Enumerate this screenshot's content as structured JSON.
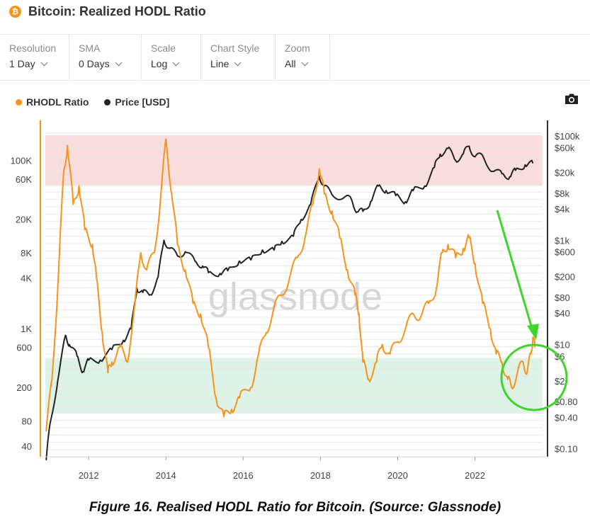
{
  "header": {
    "title": "Bitcoin: Realized HODL Ratio",
    "badge": "₿"
  },
  "toolbar": {
    "resolution": {
      "label": "Resolution",
      "value": "1 Day"
    },
    "sma": {
      "label": "SMA",
      "value": "0 Days"
    },
    "scale": {
      "label": "Scale",
      "value": "Log"
    },
    "chart_style": {
      "label": "Chart Style",
      "value": "Line"
    },
    "zoom": {
      "label": "Zoom",
      "value": "All"
    }
  },
  "legend": [
    {
      "name": "RHODL Ratio",
      "color": "#f7931a"
    },
    {
      "name": "Price [USD]",
      "color": "#222222"
    }
  ],
  "icons": {
    "camera": "camera-icon",
    "arrow": "green-arrow",
    "circle": "green-circle"
  },
  "watermark": "glassnode",
  "caption": "Figure 16. Realised HODL Ratio for Bitcoin. (Source: Glassnode)",
  "chart_data": {
    "type": "line",
    "scale": "log",
    "x_ticks": [
      "2012",
      "2014",
      "2016",
      "2018",
      "2020",
      "2022"
    ],
    "left_axis_ticks": [
      "100K",
      "60K",
      "20K",
      "8K",
      "4K",
      "1K",
      "600",
      "200",
      "80",
      "40"
    ],
    "right_axis_ticks": [
      "$100k",
      "$60k",
      "$20k",
      "$8k",
      "$4k",
      "$1k",
      "$600",
      "$200",
      "$80",
      "$40",
      "$10",
      "$6",
      "$2",
      "$0.80",
      "$0.40",
      "$0.10"
    ],
    "bands": [
      {
        "zone": "upper",
        "from": 50000,
        "to": 200000,
        "color": "#fbdcdc"
      },
      {
        "zone": "lower",
        "from": 100,
        "to": 450,
        "color": "#ddf3e6"
      }
    ],
    "series": [
      {
        "name": "RHODL Ratio",
        "color": "#f7931a",
        "axis": "left",
        "points": [
          [
            2010.9,
            60
          ],
          [
            2011.05,
            250
          ],
          [
            2011.2,
            3000
          ],
          [
            2011.35,
            70000
          ],
          [
            2011.45,
            150000
          ],
          [
            2011.6,
            30000
          ],
          [
            2011.75,
            50000
          ],
          [
            2011.9,
            15000
          ],
          [
            2012.1,
            10000
          ],
          [
            2012.2,
            4000
          ],
          [
            2012.35,
            900
          ],
          [
            2012.5,
            300
          ],
          [
            2012.6,
            400
          ],
          [
            2012.8,
            600
          ],
          [
            2013.0,
            400
          ],
          [
            2013.2,
            2000
          ],
          [
            2013.35,
            8000
          ],
          [
            2013.5,
            5000
          ],
          [
            2013.7,
            8000
          ],
          [
            2013.85,
            30000
          ],
          [
            2014.0,
            180000
          ],
          [
            2014.15,
            40000
          ],
          [
            2014.3,
            10000
          ],
          [
            2014.5,
            5000
          ],
          [
            2014.7,
            2000
          ],
          [
            2014.9,
            1500
          ],
          [
            2015.1,
            600
          ],
          [
            2015.3,
            150
          ],
          [
            2015.5,
            90
          ],
          [
            2015.7,
            110
          ],
          [
            2015.9,
            150
          ],
          [
            2016.2,
            200
          ],
          [
            2016.4,
            500
          ],
          [
            2016.6,
            900
          ],
          [
            2016.8,
            1800
          ],
          [
            2017.0,
            2500
          ],
          [
            2017.2,
            4000
          ],
          [
            2017.4,
            7000
          ],
          [
            2017.6,
            12000
          ],
          [
            2017.8,
            30000
          ],
          [
            2017.97,
            80000
          ],
          [
            2018.1,
            40000
          ],
          [
            2018.3,
            25000
          ],
          [
            2018.5,
            12000
          ],
          [
            2018.7,
            5000
          ],
          [
            2018.9,
            2500
          ],
          [
            2019.0,
            1500
          ],
          [
            2019.1,
            400
          ],
          [
            2019.25,
            250
          ],
          [
            2019.45,
            400
          ],
          [
            2019.6,
            650
          ],
          [
            2019.8,
            500
          ],
          [
            2020.0,
            700
          ],
          [
            2020.2,
            1000
          ],
          [
            2020.4,
            1500
          ],
          [
            2020.6,
            1400
          ],
          [
            2020.8,
            2000
          ],
          [
            2021.0,
            3000
          ],
          [
            2021.15,
            8000
          ],
          [
            2021.3,
            10000
          ],
          [
            2021.5,
            7000
          ],
          [
            2021.7,
            9000
          ],
          [
            2021.85,
            12000
          ],
          [
            2022.0,
            6000
          ],
          [
            2022.2,
            2000
          ],
          [
            2022.4,
            1000
          ],
          [
            2022.55,
            500
          ],
          [
            2022.7,
            400
          ],
          [
            2022.85,
            250
          ],
          [
            2022.95,
            200
          ],
          [
            2023.1,
            300
          ],
          [
            2023.25,
            400
          ],
          [
            2023.35,
            300
          ],
          [
            2023.45,
            500
          ],
          [
            2023.5,
            800
          ],
          [
            2023.55,
            600
          ]
        ]
      },
      {
        "name": "Price [USD]",
        "color": "#222222",
        "axis": "right",
        "points": [
          [
            2010.9,
            0.06
          ],
          [
            2011.0,
            0.3
          ],
          [
            2011.2,
            2
          ],
          [
            2011.4,
            15
          ],
          [
            2011.5,
            10
          ],
          [
            2011.7,
            6
          ],
          [
            2011.85,
            3
          ],
          [
            2012.0,
            5
          ],
          [
            2012.3,
            5
          ],
          [
            2012.6,
            8
          ],
          [
            2012.9,
            12
          ],
          [
            2013.1,
            20
          ],
          [
            2013.25,
            120
          ],
          [
            2013.4,
            100
          ],
          [
            2013.6,
            90
          ],
          [
            2013.8,
            200
          ],
          [
            2013.95,
            1000
          ],
          [
            2014.1,
            700
          ],
          [
            2014.3,
            500
          ],
          [
            2014.5,
            600
          ],
          [
            2014.75,
            400
          ],
          [
            2014.95,
            320
          ],
          [
            2015.1,
            240
          ],
          [
            2015.4,
            230
          ],
          [
            2015.6,
            260
          ],
          [
            2015.9,
            400
          ],
          [
            2016.2,
            420
          ],
          [
            2016.5,
            650
          ],
          [
            2016.8,
            650
          ],
          [
            2017.0,
            950
          ],
          [
            2017.3,
            1200
          ],
          [
            2017.5,
            2500
          ],
          [
            2017.75,
            5000
          ],
          [
            2017.97,
            17000
          ],
          [
            2018.1,
            11000
          ],
          [
            2018.3,
            7500
          ],
          [
            2018.6,
            6500
          ],
          [
            2018.8,
            6200
          ],
          [
            2018.95,
            3500
          ],
          [
            2019.1,
            3600
          ],
          [
            2019.3,
            5500
          ],
          [
            2019.5,
            11000
          ],
          [
            2019.7,
            9000
          ],
          [
            2019.95,
            7200
          ],
          [
            2020.2,
            5500
          ],
          [
            2020.4,
            9000
          ],
          [
            2020.7,
            11000
          ],
          [
            2020.95,
            25000
          ],
          [
            2021.1,
            45000
          ],
          [
            2021.3,
            58000
          ],
          [
            2021.5,
            34000
          ],
          [
            2021.7,
            46000
          ],
          [
            2021.85,
            64000
          ],
          [
            2022.0,
            40000
          ],
          [
            2022.2,
            42000
          ],
          [
            2022.45,
            21000
          ],
          [
            2022.7,
            19000
          ],
          [
            2022.9,
            16500
          ],
          [
            2023.05,
            22000
          ],
          [
            2023.3,
            28000
          ],
          [
            2023.5,
            30000
          ]
        ]
      }
    ]
  }
}
